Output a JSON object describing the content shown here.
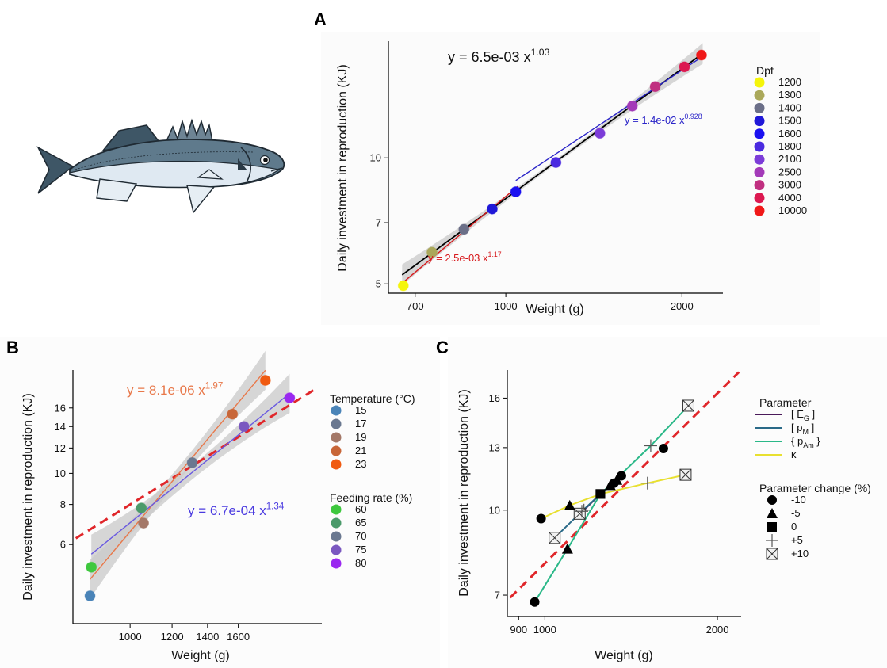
{
  "colors": {
    "band": "#c9c9c9",
    "refline": "#e0262a"
  },
  "panels": {
    "A": {
      "letter": "A"
    },
    "B": {
      "letter": "B"
    },
    "C": {
      "letter": "C"
    }
  },
  "fish_icon": "sea-bass-illustration",
  "chart_data": [
    {
      "id": "A",
      "type": "scatter",
      "log_x": true,
      "log_y": true,
      "xlabel": "Weight (g)",
      "ylabel": "Daily investment in reproduction (KJ)",
      "xticks": [
        700,
        1000,
        2000
      ],
      "yticks": [
        5,
        7,
        10
      ],
      "xlim": [
        630,
        2350
      ],
      "ylim": [
        4.75,
        19
      ],
      "legend": {
        "title": "Dpf",
        "position": "right",
        "entries": [
          {
            "label": "1200",
            "color": "#f5f50a"
          },
          {
            "label": "1300",
            "color": "#aaa85a"
          },
          {
            "label": "1400",
            "color": "#6b6f88"
          },
          {
            "label": "1500",
            "color": "#2018d8"
          },
          {
            "label": "1600",
            "color": "#1a10f0"
          },
          {
            "label": "1800",
            "color": "#4a2ae0"
          },
          {
            "label": "2100",
            "color": "#7c3cd8"
          },
          {
            "label": "2500",
            "color": "#a33ab8"
          },
          {
            "label": "3000",
            "color": "#c02f80"
          },
          {
            "label": "4000",
            "color": "#dc1850"
          },
          {
            "label": "10000",
            "color": "#f01818"
          }
        ]
      },
      "points": [
        {
          "x": 668,
          "y": 4.95,
          "color": "#f5f50a"
        },
        {
          "x": 748,
          "y": 5.95,
          "color": "#aaa85a"
        },
        {
          "x": 848,
          "y": 6.75,
          "color": "#6b6f88"
        },
        {
          "x": 948,
          "y": 7.55,
          "color": "#2018d8"
        },
        {
          "x": 1040,
          "y": 8.3,
          "color": "#1a10f0"
        },
        {
          "x": 1218,
          "y": 9.75,
          "color": "#4a2ae0"
        },
        {
          "x": 1448,
          "y": 11.45,
          "color": "#7c3cd8"
        },
        {
          "x": 1645,
          "y": 13.3,
          "color": "#a33ab8"
        },
        {
          "x": 1800,
          "y": 14.8,
          "color": "#c02f80"
        },
        {
          "x": 2020,
          "y": 16.5,
          "color": "#dc1850"
        },
        {
          "x": 2160,
          "y": 17.6,
          "color": "#f01818"
        }
      ],
      "fits": [
        {
          "a": 0.0065,
          "b": 1.03,
          "x_range": [
            665,
            2170
          ],
          "color": "#000000",
          "width": 1.8,
          "band": true
        },
        {
          "a": 0.0025,
          "b": 1.17,
          "x_range": [
            665,
            1050
          ],
          "color": "#d7191c",
          "width": 1.4,
          "band": false
        },
        {
          "a": 0.014,
          "b": 0.928,
          "x_range": [
            1040,
            2170
          ],
          "color": "#2a24c8",
          "width": 1.4,
          "band": false
        }
      ],
      "annotations": [
        {
          "text": "y = 6.5e-03 x",
          "exp": "1.03",
          "color": "#111111"
        },
        {
          "text": "y = 1.4e-02 x",
          "exp": "0.928",
          "color": "#2a24c8"
        },
        {
          "text": "y = 2.5e-03 x",
          "exp": "1.17",
          "color": "#d7191c"
        }
      ]
    },
    {
      "id": "B",
      "type": "scatter",
      "log_x": true,
      "log_y": true,
      "xlabel": "Weight (g)",
      "ylabel": "Daily investment in reproduction (KJ)",
      "xticks": [
        1000,
        1200,
        1400,
        1600
      ],
      "yticks": [
        6,
        8,
        10,
        12,
        14,
        16
      ],
      "xlim": [
        780,
        2300
      ],
      "ylim": [
        3.4,
        21
      ],
      "legend": {
        "position": "right",
        "groups": [
          {
            "title": "Temperature (°C)",
            "entries": [
              {
                "label": "15",
                "color": "#4a84b8"
              },
              {
                "label": "17",
                "color": "#6a7890"
              },
              {
                "label": "19",
                "color": "#a47868"
              },
              {
                "label": "21",
                "color": "#c86638"
              },
              {
                "label": "23",
                "color": "#f05a10"
              }
            ]
          },
          {
            "title": "Feeding rate (%)",
            "entries": [
              {
                "label": "60",
                "color": "#3ec83e"
              },
              {
                "label": "65",
                "color": "#4a9a6a"
              },
              {
                "label": "70",
                "color": "#6a7890"
              },
              {
                "label": "75",
                "color": "#7a58c0"
              },
              {
                "label": "80",
                "color": "#9a28f0"
              }
            ]
          }
        ]
      },
      "points": [
        {
          "x": 840,
          "y": 4.15,
          "color": "#4a84b8"
        },
        {
          "x": 1060,
          "y": 7.0,
          "color": "#a47868"
        },
        {
          "x": 1310,
          "y": 10.8,
          "color": "#6a7890"
        },
        {
          "x": 1560,
          "y": 15.3,
          "color": "#c86638"
        },
        {
          "x": 1800,
          "y": 19.5,
          "color": "#f05a10"
        },
        {
          "x": 845,
          "y": 5.1,
          "color": "#3ec83e"
        },
        {
          "x": 1050,
          "y": 7.8,
          "color": "#4a9a6a"
        },
        {
          "x": 1640,
          "y": 14.0,
          "color": "#7a58c0"
        },
        {
          "x": 2000,
          "y": 17.2,
          "color": "#9a28f0"
        }
      ],
      "fits": [
        {
          "a": 8.1e-06,
          "b": 1.97,
          "x_range": [
            840,
            1800
          ],
          "color": "#e8784a",
          "width": 1.4,
          "band": true
        },
        {
          "a": 0.00067,
          "b": 1.34,
          "x_range": [
            845,
            2000
          ],
          "color": "#6a5ae0",
          "width": 1.4,
          "band": true
        }
      ],
      "refline": {
        "a": 0.0065,
        "b": 1.03,
        "x_range": [
          790,
          2250
        ],
        "color": "#e0262a",
        "dashed": true
      },
      "annotations": [
        {
          "text": "y = 8.1e-06 x",
          "exp": "1.97",
          "color": "#e8784a"
        },
        {
          "text": "y = 6.7e-04 x",
          "exp": "1.34",
          "color": "#4a3ae0"
        }
      ]
    },
    {
      "id": "C",
      "type": "scatter",
      "log_x": true,
      "log_y": true,
      "xlabel": "Weight (g)",
      "ylabel": "Daily investment in reproduction (KJ)",
      "xticks": [
        900,
        1000,
        2000
      ],
      "yticks": [
        7,
        10,
        13,
        16
      ],
      "xlim": [
        860,
        2200
      ],
      "ylim": [
        6.4,
        18
      ],
      "legend": {
        "position": "right",
        "groups": [
          {
            "title": "Parameter",
            "entries": [
              {
                "label": "[ E",
                "sub": "G",
                "tail": " ]",
                "color": "#4a1a5a"
              },
              {
                "label": "[ p",
                "sub": "M",
                "tail": " ]",
                "color": "#2a6a88"
              },
              {
                "label": "{ p",
                "sub": "Am",
                "tail": " }",
                "color": "#2ab888"
              },
              {
                "label": "κ",
                "sub": "",
                "tail": "",
                "color": "#e8e030"
              }
            ]
          },
          {
            "title": "Parameter change (%)",
            "entries": [
              {
                "label": "-10",
                "shape": "circle"
              },
              {
                "label": "-5",
                "shape": "triangle"
              },
              {
                "label": "0",
                "shape": "square"
              },
              {
                "label": "+5",
                "shape": "plus"
              },
              {
                "label": "+10",
                "shape": "boxx"
              }
            ]
          }
        ]
      },
      "series": [
        {
          "name": "[ EG ]",
          "color": "#4a1a5a",
          "points": [
            {
              "x": 1320,
              "y": 11.2,
              "shape": "circle"
            },
            {
              "x": 1335,
              "y": 11.35,
              "shape": "triangle"
            },
            {
              "x": 1250,
              "y": 10.7,
              "shape": "square"
            },
            {
              "x": 1170,
              "y": 10.0,
              "shape": "plus"
            },
            {
              "x": 1150,
              "y": 9.85,
              "shape": "boxx"
            }
          ]
        },
        {
          "name": "[ pM ]",
          "color": "#2a6a88",
          "points": [
            {
              "x": 1360,
              "y": 11.55,
              "shape": "circle"
            },
            {
              "x": 1300,
              "y": 11.1,
              "shape": "triangle"
            },
            {
              "x": 1250,
              "y": 10.7,
              "shape": "square"
            },
            {
              "x": 1160,
              "y": 9.95,
              "shape": "plus"
            },
            {
              "x": 1040,
              "y": 8.9,
              "shape": "boxx"
            }
          ]
        },
        {
          "name": "{ pAm }",
          "color": "#2ab888",
          "points": [
            {
              "x": 960,
              "y": 6.8,
              "shape": "circle"
            },
            {
              "x": 1095,
              "y": 8.5,
              "shape": "triangle"
            },
            {
              "x": 1250,
              "y": 10.7,
              "shape": "square"
            },
            {
              "x": 1530,
              "y": 13.1,
              "shape": "plus"
            },
            {
              "x": 1780,
              "y": 15.5,
              "shape": "boxx"
            }
          ]
        },
        {
          "name": "κ",
          "color": "#e8e030",
          "points": [
            {
              "x": 985,
              "y": 9.65,
              "shape": "circle"
            },
            {
              "x": 1105,
              "y": 10.2,
              "shape": "triangle"
            },
            {
              "x": 1250,
              "y": 10.7,
              "shape": "square"
            },
            {
              "x": 1510,
              "y": 11.2,
              "shape": "plus"
            },
            {
              "x": 1760,
              "y": 11.6,
              "shape": "boxx"
            }
          ]
        }
      ],
      "extra_points": [
        {
          "x": 1610,
          "y": 12.95,
          "shape": "circle",
          "color": "#000000"
        }
      ],
      "refline": {
        "a": 0.0065,
        "b": 1.03,
        "x_range": [
          870,
          2180
        ],
        "color": "#e0262a",
        "dashed": true
      }
    }
  ]
}
